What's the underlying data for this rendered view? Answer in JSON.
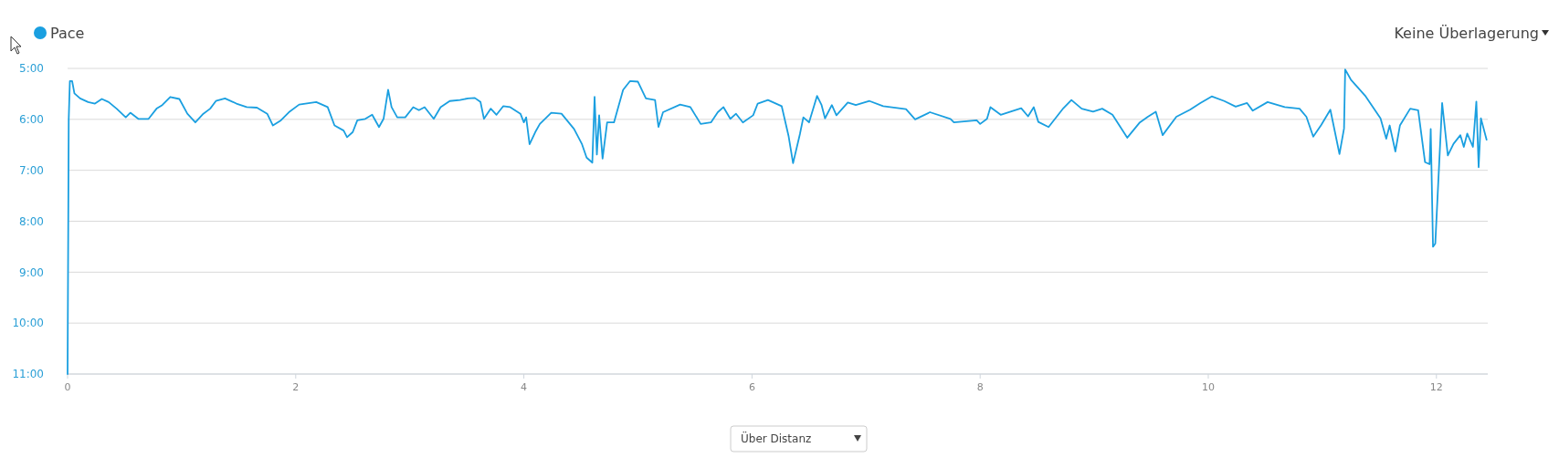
{
  "chart_data": {
    "type": "line",
    "legend": "top left",
    "grid": "y",
    "marker": "none",
    "line_style": "solid",
    "xlim": [
      0,
      12.45
    ],
    "xticks": [
      0,
      2,
      4,
      6,
      8,
      10,
      12
    ],
    "ylim": [
      11,
      5
    ],
    "yticks": [
      {
        "value": 5,
        "label": "5:00"
      },
      {
        "value": 6,
        "label": "6:00"
      },
      {
        "value": 7,
        "label": "7:00"
      },
      {
        "value": 8,
        "label": "8:00"
      },
      {
        "value": 9,
        "label": "9:00"
      },
      {
        "value": 10,
        "label": "10:00"
      },
      {
        "value": 11,
        "label": "11:00"
      }
    ],
    "annotations": [
      "Keine Überlagerung",
      "Über Distanz"
    ],
    "series": [
      {
        "name": "Pace",
        "color": "#1a9fe0",
        "x": [
          0,
          0.01,
          0.02,
          0.04,
          0.06,
          0.11,
          0.18,
          0.24,
          0.3,
          0.36,
          0.43,
          0.51,
          0.55,
          0.62,
          0.71,
          0.78,
          0.83,
          0.9,
          0.98,
          1.05,
          1.12,
          1.19,
          1.25,
          1.3,
          1.38,
          1.48,
          1.57,
          1.66,
          1.75,
          1.8,
          1.87,
          1.94,
          2.03,
          2.18,
          2.28,
          2.34,
          2.42,
          2.45,
          2.5,
          2.54,
          2.61,
          2.67,
          2.73,
          2.77,
          2.81,
          2.84,
          2.89,
          2.96,
          3.03,
          3.08,
          3.13,
          3.21,
          3.27,
          3.35,
          3.44,
          3.51,
          3.57,
          3.62,
          3.65,
          3.71,
          3.76,
          3.82,
          3.88,
          3.97,
          4.0,
          4.02,
          4.05,
          4.1,
          4.14,
          4.24,
          4.33,
          4.44,
          4.51,
          4.55,
          4.6,
          4.62,
          4.64,
          4.66,
          4.69,
          4.73,
          4.79,
          4.87,
          4.93,
          5.0,
          5.07,
          5.15,
          5.18,
          5.22,
          5.37,
          5.46,
          5.55,
          5.64,
          5.7,
          5.75,
          5.81,
          5.86,
          5.92,
          6.01,
          6.05,
          6.14,
          6.26,
          6.32,
          6.36,
          6.42,
          6.45,
          6.5,
          6.57,
          6.61,
          6.64,
          6.7,
          6.74,
          6.84,
          6.91,
          7.03,
          7.15,
          7.35,
          7.43,
          7.56,
          7.74,
          7.77,
          7.97,
          8.0,
          8.06,
          8.09,
          8.18,
          8.36,
          8.42,
          8.47,
          8.51,
          8.6,
          8.73,
          8.8,
          8.89,
          8.99,
          9.07,
          9.16,
          9.29,
          9.4,
          9.47,
          9.54,
          9.6,
          9.72,
          9.84,
          9.93,
          10.03,
          10.14,
          10.24,
          10.34,
          10.39,
          10.52,
          10.67,
          10.8,
          10.86,
          10.92,
          10.99,
          11.07,
          11.15,
          11.19,
          11.2,
          11.25,
          11.38,
          11.51,
          11.56,
          11.59,
          11.64,
          11.68,
          11.77,
          11.84,
          11.9,
          11.94,
          11.95,
          11.97,
          11.99,
          12.05,
          12.1,
          12.15,
          12.21,
          12.24,
          12.27,
          12.32,
          12.35,
          12.37,
          12.39,
          12.44
        ],
        "values": [
          11,
          6,
          5.25,
          5.25,
          5.49,
          5.59,
          5.66,
          5.69,
          5.6,
          5.66,
          5.79,
          5.96,
          5.87,
          5.99,
          5.99,
          5.79,
          5.72,
          5.56,
          5.6,
          5.89,
          6.06,
          5.89,
          5.79,
          5.64,
          5.59,
          5.69,
          5.76,
          5.77,
          5.89,
          6.12,
          6.02,
          5.86,
          5.71,
          5.66,
          5.76,
          6.12,
          6.22,
          6.35,
          6.25,
          6.02,
          5.99,
          5.91,
          6.15,
          5.99,
          5.42,
          5.76,
          5.96,
          5.96,
          5.76,
          5.82,
          5.76,
          5.99,
          5.76,
          5.64,
          5.62,
          5.59,
          5.58,
          5.66,
          5.99,
          5.79,
          5.91,
          5.74,
          5.76,
          5.89,
          6.06,
          5.96,
          6.49,
          6.25,
          6.09,
          5.87,
          5.89,
          6.19,
          6.49,
          6.75,
          6.85,
          5.56,
          6.69,
          5.92,
          6.77,
          6.06,
          6.06,
          5.42,
          5.25,
          5.26,
          5.59,
          5.62,
          6.15,
          5.86,
          5.71,
          5.76,
          6.09,
          6.06,
          5.86,
          5.76,
          5.99,
          5.89,
          6.06,
          5.92,
          5.69,
          5.62,
          5.74,
          6.32,
          6.86,
          6.29,
          5.96,
          6.06,
          5.54,
          5.72,
          5.98,
          5.72,
          5.92,
          5.67,
          5.72,
          5.64,
          5.74,
          5.8,
          6,
          5.86,
          5.99,
          6.06,
          6.02,
          6.09,
          5.99,
          5.76,
          5.91,
          5.78,
          5.94,
          5.76,
          6.05,
          6.15,
          5.78,
          5.62,
          5.79,
          5.85,
          5.79,
          5.91,
          6.36,
          6.06,
          5.95,
          5.85,
          6.31,
          5.95,
          5.81,
          5.68,
          5.55,
          5.64,
          5.75,
          5.68,
          5.83,
          5.66,
          5.76,
          5.79,
          5.95,
          6.34,
          6.11,
          5.81,
          6.68,
          6.18,
          5.02,
          5.22,
          5.55,
          5.98,
          6.38,
          6.12,
          6.63,
          6.12,
          5.79,
          5.82,
          6.84,
          6.88,
          6.19,
          8.5,
          8.44,
          5.68,
          6.71,
          6.48,
          6.31,
          6.54,
          6.28,
          6.54,
          5.65,
          6.94,
          5.98,
          6.4
        ]
      }
    ]
  }
}
